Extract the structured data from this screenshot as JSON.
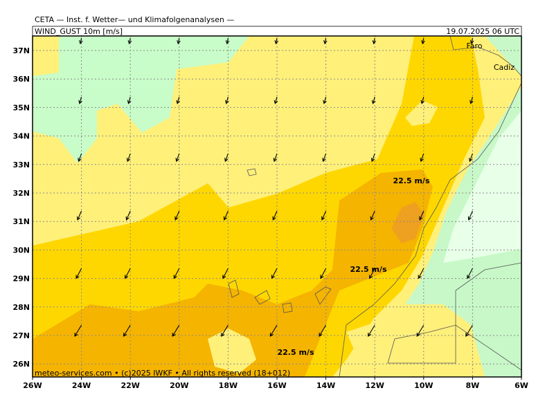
{
  "header": {
    "title": "CETA — Inst. f. Wetter— und Klimafolgenanalysen —",
    "field": "WIND_GUST 10m [m/s]",
    "datetime": "19.07.2025 06 UTC"
  },
  "map": {
    "lat_labels": [
      "37N",
      "36N",
      "35N",
      "34N",
      "33N",
      "32N",
      "31N",
      "30N",
      "29N",
      "28N",
      "27N",
      "26N"
    ],
    "lon_labels": [
      "26W",
      "24W",
      "22W",
      "20W",
      "18W",
      "16W",
      "14W",
      "12W",
      "10W",
      "8W",
      "6W"
    ],
    "places": [
      "Faro",
      "Cadiz"
    ],
    "contour_labels": [
      "22.5 m/s",
      "22.5 m/s",
      "22.5 m/s"
    ]
  },
  "footer": "meteo-services.com • (c)2025 IWKF • All rights reserved (18+012)"
}
